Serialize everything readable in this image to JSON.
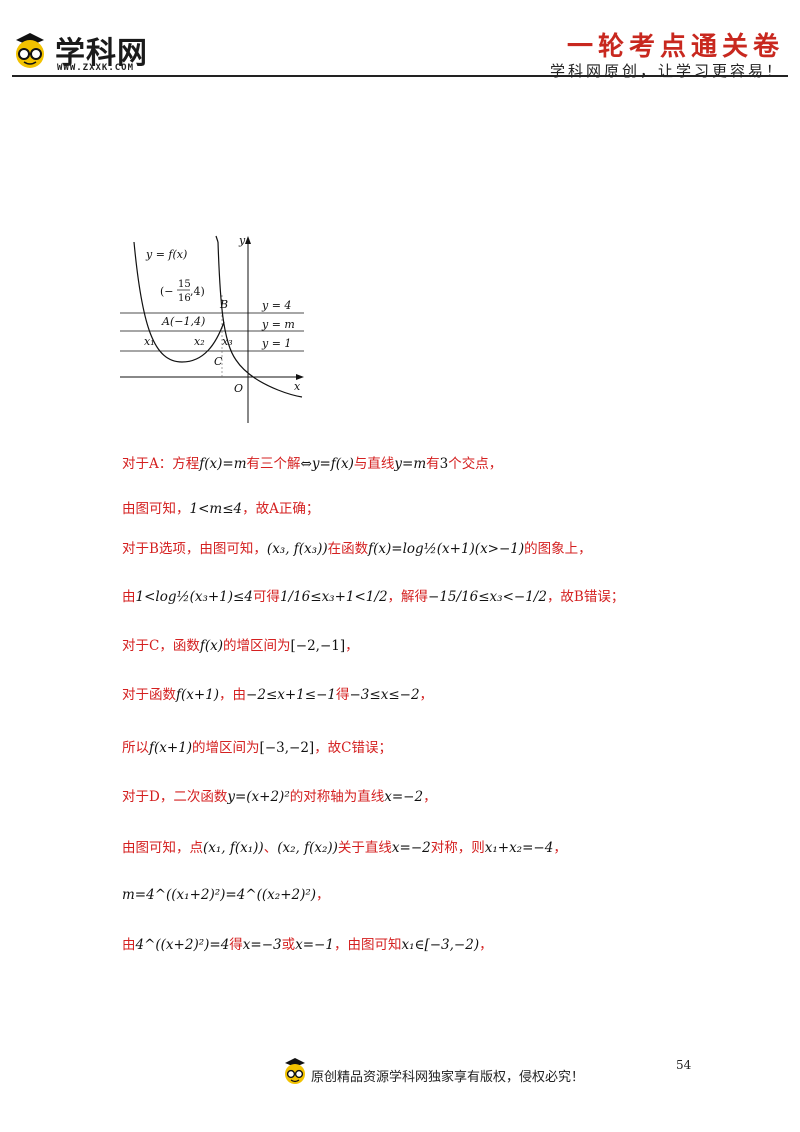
{
  "header": {
    "logo_text": "学科网",
    "logo_url": "WWW.ZXXK.COM",
    "series_title": "一轮考点通关卷",
    "slogan": "学科网原创，让学习更容易！"
  },
  "figure": {
    "function_label": "y = f(x)",
    "point_label_num": "15",
    "point_label_den": "16",
    "point_label_prefix": "(−",
    "point_label_suffix": ",4)",
    "point_a": "A(−1,4)",
    "point_b": "B",
    "point_c": "C",
    "origin": "O",
    "x_axis": "x",
    "y_axis": "y",
    "line_y4": "y = 4",
    "line_ym": "y = m",
    "line_y1": "y = 1",
    "x1": "x₁",
    "x2": "x₂",
    "x3": "x₃"
  },
  "solution": [
    {
      "parts": [
        "对于A：方程",
        "f(x)=m",
        "有三个解",
        "⇔",
        "y=f(x)",
        "与直线",
        "y=m",
        "有",
        "3",
        "个交点，"
      ]
    },
    {
      "parts": [
        "由图可知，",
        "1<m≤4",
        "，故A正确；"
      ]
    },
    {
      "parts": [
        "对于B选项，由图可知，",
        "(x₃, f(x₃))",
        "在函数",
        "f(x)=log½(x+1)(x>−1)",
        "的图象上，"
      ]
    },
    {
      "parts": [
        "由",
        "1<log½(x₃+1)≤4",
        "可得",
        "1/16≤x₃+1<1/2",
        "，解得",
        "−15/16≤x₃<−1/2",
        "，故B错误；"
      ]
    },
    {
      "parts": [
        "对于C，函数",
        "f(x)",
        "的增区间为",
        "[−2,−1]",
        "，"
      ]
    },
    {
      "parts": [
        "对于函数",
        "f(x+1)",
        "，由",
        "−2≤x+1≤−1",
        "得",
        "−3≤x≤−2",
        "，"
      ]
    },
    {
      "parts": [
        "所以",
        "f(x+1)",
        "的增区间为",
        "[−3,−2]",
        "，故C错误；"
      ]
    },
    {
      "parts": [
        "对于D，二次函数",
        "y=(x+2)²",
        "的对称轴为直线",
        "x=−2",
        "，"
      ]
    },
    {
      "parts": [
        "由图可知，点",
        "(x₁, f(x₁))",
        "、",
        "(x₂, f(x₂))",
        "关于直线",
        "x=−2",
        "对称，则",
        "x₁+x₂=−4",
        "，"
      ]
    },
    {
      "parts": [
        "m=4^((x₁+2)²)=4^((x₂+2)²)",
        "，"
      ]
    },
    {
      "parts": [
        "由",
        "4^((x+2)²)=4",
        "得",
        "x=−3",
        "或",
        "x=−1",
        "，由图可知",
        "x₁∈[−3,−2)",
        "，"
      ]
    }
  ],
  "footer": {
    "page_number": "54",
    "note": "原创精品资源学科网独家享有版权，侵权必究！"
  },
  "colors": {
    "accent": "#c8281f",
    "text_red": "#d42020"
  },
  "icons": [
    "logo-face-icon",
    "footer-face-icon"
  ]
}
